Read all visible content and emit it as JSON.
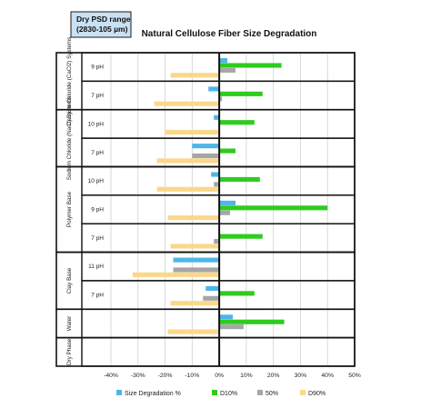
{
  "chart_data": {
    "type": "bar",
    "orientation": "horizontal",
    "title": "Natural Cellulose Fiber Size Degradation",
    "corner_box": {
      "line1": "Dry PSD range",
      "line2": "(2830-105 µm)"
    },
    "xlim": [
      -40,
      50
    ],
    "x_ticks": [
      -40,
      -30,
      -20,
      -10,
      0,
      10,
      20,
      30,
      40,
      50
    ],
    "x_tick_labels": [
      "-40%",
      "-30%",
      "-20%",
      "-10%",
      "0%",
      "10%",
      "20%",
      "30%",
      "40%",
      "50%"
    ],
    "series": [
      {
        "name": "Size Degradation %",
        "color": "#4DB6E8"
      },
      {
        "name": "D10%",
        "color": "#2ECC1E"
      },
      {
        "name": "50%",
        "color": "#A6A6A6"
      },
      {
        "name": "D90%",
        "color": "#FAD78A"
      }
    ],
    "groups": [
      {
        "label": "Calcium Chloride (CaCl2) Systems",
        "rows": [
          {
            "label": "9 pH",
            "values": [
              3,
              23,
              6,
              -18
            ]
          },
          {
            "label": "7 pH",
            "values": [
              -4,
              16,
              1,
              -24
            ]
          }
        ]
      },
      {
        "label": "Sodium Chloride (NaCl) Systems",
        "rows": [
          {
            "label": "10 pH",
            "values": [
              -2,
              13,
              null,
              -20
            ]
          },
          {
            "label": "7 pH",
            "values": [
              -10,
              6,
              -10,
              -23
            ]
          }
        ]
      },
      {
        "label": "Polymer Base",
        "rows": [
          {
            "label": "10 pH",
            "values": [
              -3,
              15,
              -2,
              -23
            ]
          },
          {
            "label": "9 pH",
            "values": [
              6,
              40,
              4,
              -19
            ]
          },
          {
            "label": "7 pH",
            "values": [
              null,
              16,
              -2,
              -18
            ]
          }
        ]
      },
      {
        "label": "Clay Base",
        "rows": [
          {
            "label": "11 pH",
            "values": [
              -17,
              null,
              -17,
              -32
            ]
          },
          {
            "label": "7 pH",
            "values": [
              -5,
              13,
              -6,
              -18
            ]
          }
        ]
      },
      {
        "label": "Water",
        "rows": [
          {
            "label": "",
            "values": [
              5,
              24,
              9,
              -19
            ]
          }
        ]
      },
      {
        "label": "Dry Phase",
        "rows": [
          {
            "label": "",
            "values": [
              null,
              null,
              null,
              null
            ]
          }
        ]
      }
    ]
  }
}
